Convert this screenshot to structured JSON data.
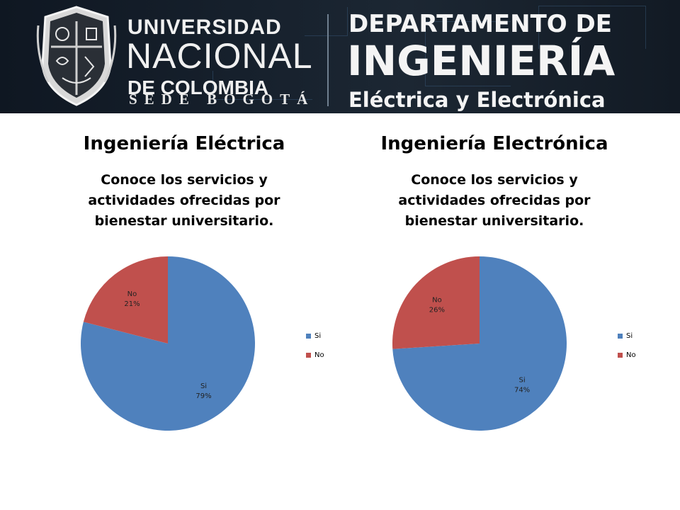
{
  "banner": {
    "university_line1": "UNIVERSIDAD",
    "university_line2": "NACIONAL",
    "university_line3": "DE COLOMBIA",
    "sede": "SEDE BOGOTÁ",
    "department_line1": "DEPARTAMENTO DE",
    "department_line2": "INGENIERÍA",
    "department_line3": "Eléctrica y Electrónica"
  },
  "colors": {
    "si": "#4F81BD",
    "no": "#C0504D",
    "banner_bg": "#16202c"
  },
  "panels": [
    {
      "heading": "Ingeniería Eléctrica"
    },
    {
      "heading": "Ingeniería Electrónica"
    }
  ],
  "chart_data": [
    {
      "type": "pie",
      "title": "Conoce los servicios y actividades ofrecidas por bienestar universitario.",
      "categories": [
        "Si",
        "No"
      ],
      "values": [
        79,
        21
      ],
      "data_labels": [
        {
          "name": "Si",
          "value": "79%"
        },
        {
          "name": "No",
          "value": "21%"
        }
      ],
      "legend": {
        "position": "right",
        "entries": [
          "Si",
          "No"
        ]
      }
    },
    {
      "type": "pie",
      "title": "Conoce los servicios y actividades ofrecidas por bienestar universitario.",
      "categories": [
        "Si",
        "No"
      ],
      "values": [
        74,
        26
      ],
      "data_labels": [
        {
          "name": "Si",
          "value": "74%"
        },
        {
          "name": "No",
          "value": "26%"
        }
      ],
      "legend": {
        "position": "right",
        "entries": [
          "Si",
          "No"
        ]
      }
    }
  ]
}
